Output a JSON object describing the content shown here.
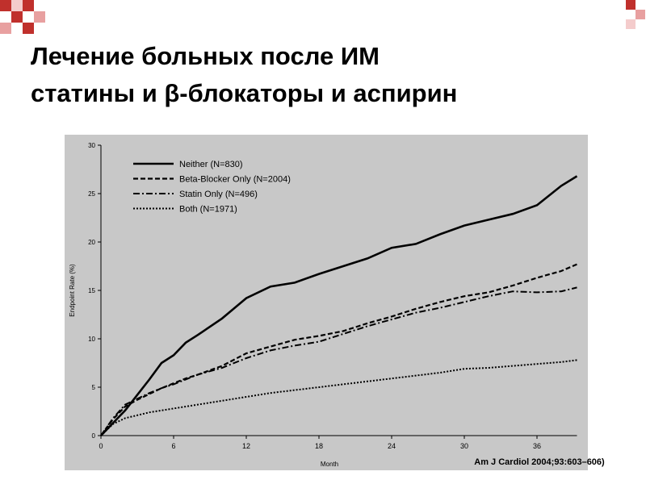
{
  "slide": {
    "title_lines": [
      "Лечение больных после ИМ",
      "статины и β-блокаторы и аспирин"
    ],
    "citation": "Am J Cardiol 2004;93:603–606)"
  },
  "chart_data": {
    "type": "line",
    "x_label": "Month",
    "y_label": "Endpoint Rate (%)",
    "x": [
      0,
      1,
      2,
      3,
      4,
      5,
      6,
      7,
      8,
      10,
      12,
      14,
      16,
      18,
      20,
      22,
      24,
      26,
      28,
      30,
      32,
      34,
      36,
      38,
      39.3
    ],
    "series": [
      {
        "name": "Neither (N=830)",
        "color": "#000000",
        "dash": "solid",
        "values": [
          0,
          1.3,
          2.6,
          4.2,
          5.8,
          7.5,
          8.3,
          9.6,
          10.4,
          12.1,
          14.2,
          15.4,
          15.8,
          16.7,
          17.5,
          18.3,
          19.4,
          19.8,
          20.8,
          21.7,
          22.3,
          22.9,
          23.8,
          25.8,
          26.8
        ]
      },
      {
        "name": "Beta-Blocker Only (N=2004)",
        "color": "#000000",
        "dash": "dashed",
        "values": [
          0,
          1.7,
          3.0,
          3.7,
          4.3,
          4.9,
          5.4,
          5.9,
          6.3,
          7.2,
          8.5,
          9.2,
          9.9,
          10.3,
          10.8,
          11.6,
          12.3,
          13.1,
          13.8,
          14.4,
          14.8,
          15.5,
          16.3,
          17.0,
          17.7
        ]
      },
      {
        "name": "Statin Only (N=496)",
        "color": "#000000",
        "dash": "dashdot",
        "values": [
          0,
          1.8,
          3.2,
          3.8,
          4.4,
          4.9,
          5.3,
          5.8,
          6.3,
          7.0,
          8.0,
          8.8,
          9.3,
          9.7,
          10.5,
          11.3,
          12.0,
          12.7,
          13.2,
          13.8,
          14.4,
          14.9,
          14.8,
          14.9,
          15.3
        ]
      },
      {
        "name": "Both (N=1971)",
        "color": "#000000",
        "dash": "dotted",
        "values": [
          0,
          1.2,
          1.8,
          2.1,
          2.4,
          2.6,
          2.8,
          3.0,
          3.2,
          3.6,
          4.0,
          4.4,
          4.7,
          5.0,
          5.3,
          5.6,
          5.9,
          6.2,
          6.5,
          6.9,
          7.0,
          7.2,
          7.4,
          7.6,
          7.8
        ]
      }
    ],
    "xlim": [
      0,
      40
    ],
    "xticks": [
      0,
      6,
      12,
      18,
      24,
      30,
      36
    ],
    "ylim": [
      0,
      30
    ],
    "yticks": [
      0,
      5,
      10,
      15,
      20,
      25,
      30
    ],
    "legend": "upper left",
    "grid": false
  }
}
